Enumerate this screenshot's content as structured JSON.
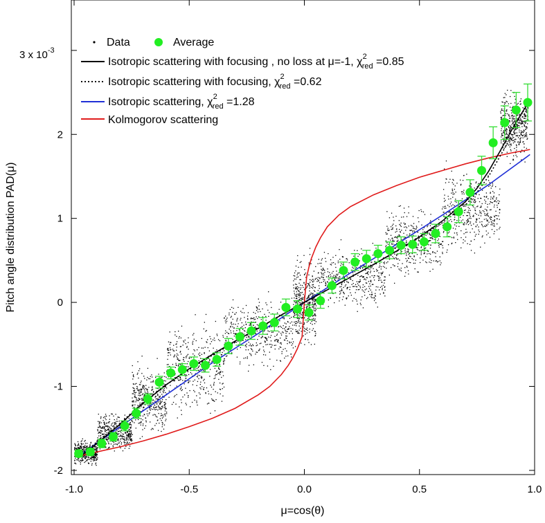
{
  "chart_data": {
    "type": "scatter",
    "xlabel": "μ=cos(θ)",
    "ylabel": "Pitch angle distribution PAD(μ)",
    "xlim": [
      -1.0,
      1.0
    ],
    "ylim": [
      -2.05,
      3.6
    ],
    "y_multiplier_label": "3 x 10",
    "y_multiplier_exp": "-3",
    "x_ticks": [
      {
        "value": -1.0,
        "label": "-1.0"
      },
      {
        "value": -0.5,
        "label": "-0.5"
      },
      {
        "value": 0.0,
        "label": "0.0"
      },
      {
        "value": 0.5,
        "label": "0.5"
      },
      {
        "value": 1.0,
        "label": "1.0"
      }
    ],
    "y_ticks": [
      {
        "value": -2,
        "label": "-2"
      },
      {
        "value": -1,
        "label": "-1"
      },
      {
        "value": 0,
        "label": "0"
      },
      {
        "value": 1,
        "label": "1"
      },
      {
        "value": 2,
        "label": "2"
      }
    ],
    "grid": false,
    "legend_position": "top-left",
    "legend": {
      "data": "Data",
      "average": "Average",
      "focus_noloss_pre": "Isotropic scattering with focusing , no loss at μ=-1, χ",
      "focus_noloss_post": " =0.85",
      "focus_pre": "Isotropic scattering with focusing, χ",
      "focus_post": " =0.62",
      "iso_pre": "Isotropic scattering, χ",
      "iso_post": " =1.28",
      "chi_sup": "2",
      "chi_sub": "red",
      "kolmogorov": "Kolmogorov scattering"
    },
    "colors": {
      "data": "#000000",
      "average": "#22ee22",
      "errorbar": "#33dd33",
      "focus_noloss": "#000000",
      "focus": "#000000",
      "isotropic": "#1f2fd6",
      "kolmogorov": "#e01b1b"
    },
    "average": {
      "x": [
        -0.98,
        -0.93,
        -0.88,
        -0.83,
        -0.78,
        -0.73,
        -0.68,
        -0.63,
        -0.58,
        -0.53,
        -0.48,
        -0.43,
        -0.38,
        -0.33,
        -0.28,
        -0.23,
        -0.18,
        -0.13,
        -0.08,
        -0.03,
        0.02,
        0.07,
        0.12,
        0.17,
        0.22,
        0.27,
        0.32,
        0.37,
        0.42,
        0.47,
        0.52,
        0.57,
        0.62,
        0.67,
        0.72,
        0.77,
        0.82,
        0.87,
        0.92,
        0.97
      ],
      "y": [
        -1.8,
        -1.78,
        -1.68,
        -1.6,
        -1.47,
        -1.32,
        -1.15,
        -0.95,
        -0.84,
        -0.8,
        -0.73,
        -0.75,
        -0.68,
        -0.52,
        -0.41,
        -0.34,
        -0.28,
        -0.24,
        -0.06,
        -0.08,
        -0.12,
        0.02,
        0.2,
        0.38,
        0.48,
        0.52,
        0.58,
        0.62,
        0.68,
        0.69,
        0.72,
        0.82,
        0.9,
        1.08,
        1.31,
        1.57,
        1.9,
        2.14,
        2.29,
        2.38
      ],
      "err": [
        0.04,
        0.04,
        0.05,
        0.05,
        0.06,
        0.06,
        0.06,
        0.07,
        0.07,
        0.07,
        0.08,
        0.08,
        0.08,
        0.09,
        0.1,
        0.1,
        0.1,
        0.1,
        0.1,
        0.1,
        0.09,
        0.09,
        0.09,
        0.1,
        0.1,
        0.1,
        0.1,
        0.1,
        0.1,
        0.1,
        0.1,
        0.11,
        0.12,
        0.13,
        0.15,
        0.17,
        0.19,
        0.2,
        0.21,
        0.22
      ]
    },
    "curves": {
      "focus_noloss": {
        "x": [
          -0.98,
          -0.9,
          -0.8,
          -0.7,
          -0.6,
          -0.5,
          -0.4,
          -0.3,
          -0.2,
          -0.1,
          0.0,
          0.1,
          0.2,
          0.3,
          0.4,
          0.5,
          0.6,
          0.7,
          0.75,
          0.8,
          0.85,
          0.9,
          0.95,
          0.98
        ],
        "y": [
          -1.85,
          -1.68,
          -1.45,
          -1.2,
          -0.98,
          -0.79,
          -0.62,
          -0.46,
          -0.31,
          -0.15,
          0.0,
          0.15,
          0.3,
          0.45,
          0.61,
          0.78,
          0.97,
          1.2,
          1.36,
          1.56,
          1.8,
          2.05,
          2.28,
          2.4
        ]
      },
      "focus": {
        "x": [
          -0.98,
          -0.9,
          -0.8,
          -0.7,
          -0.6,
          -0.5,
          -0.4,
          -0.3,
          -0.2,
          -0.1,
          0.0,
          0.1,
          0.2,
          0.3,
          0.4,
          0.5,
          0.6,
          0.7,
          0.75,
          0.8,
          0.85,
          0.9,
          0.95,
          0.98
        ],
        "y": [
          -1.84,
          -1.66,
          -1.44,
          -1.19,
          -0.98,
          -0.8,
          -0.63,
          -0.47,
          -0.31,
          -0.15,
          0.0,
          0.15,
          0.3,
          0.45,
          0.61,
          0.77,
          0.95,
          1.16,
          1.31,
          1.5,
          1.74,
          1.98,
          2.22,
          2.35
        ]
      },
      "isotropic": {
        "x": [
          -0.98,
          -0.8,
          -0.6,
          -0.4,
          -0.2,
          0.0,
          0.2,
          0.4,
          0.6,
          0.8,
          0.98
        ],
        "y": [
          -1.83,
          -1.48,
          -1.1,
          -0.72,
          -0.37,
          0.0,
          0.35,
          0.69,
          1.04,
          1.4,
          1.76
        ]
      },
      "kolmogorov": {
        "x": [
          -0.98,
          -0.9,
          -0.8,
          -0.7,
          -0.6,
          -0.5,
          -0.4,
          -0.3,
          -0.2,
          -0.15,
          -0.1,
          -0.07,
          -0.05,
          -0.03,
          -0.02,
          -0.01,
          0.0,
          0.01,
          0.02,
          0.03,
          0.05,
          0.07,
          0.1,
          0.15,
          0.2,
          0.3,
          0.4,
          0.5,
          0.6,
          0.7,
          0.8,
          0.9,
          0.98
        ],
        "y": [
          -1.83,
          -1.78,
          -1.72,
          -1.65,
          -1.57,
          -1.48,
          -1.38,
          -1.26,
          -1.1,
          -1.0,
          -0.86,
          -0.75,
          -0.66,
          -0.55,
          -0.48,
          -0.41,
          0.0,
          0.3,
          0.42,
          0.52,
          0.66,
          0.77,
          0.9,
          1.04,
          1.14,
          1.28,
          1.39,
          1.49,
          1.57,
          1.65,
          1.72,
          1.78,
          1.82
        ]
      }
    },
    "data_cloud_regions": [
      {
        "x_range": [
          -1.0,
          -0.9
        ],
        "y_center": -1.78,
        "y_spread": 0.12
      },
      {
        "x_range": [
          -0.9,
          -0.75
        ],
        "y_center": -1.55,
        "y_spread": 0.18
      },
      {
        "x_range": [
          -0.75,
          -0.6
        ],
        "y_center": -1.15,
        "y_spread": 0.35
      },
      {
        "x_range": [
          -0.6,
          -0.35
        ],
        "y_center": -0.78,
        "y_spread": 0.45
      },
      {
        "x_range": [
          -0.35,
          -0.05
        ],
        "y_center": -0.35,
        "y_spread": 0.35
      },
      {
        "x_range": [
          -0.05,
          0.05
        ],
        "y_center": 0.0,
        "y_spread": 0.45
      },
      {
        "x_range": [
          0.05,
          0.35
        ],
        "y_center": 0.3,
        "y_spread": 0.3
      },
      {
        "x_range": [
          0.35,
          0.6
        ],
        "y_center": 0.72,
        "y_spread": 0.35
      },
      {
        "x_range": [
          0.6,
          0.85
        ],
        "y_center": 1.1,
        "y_spread": 0.4
      },
      {
        "x_range": [
          0.85,
          0.97
        ],
        "y_center": 2.1,
        "y_spread": 0.35
      }
    ]
  }
}
